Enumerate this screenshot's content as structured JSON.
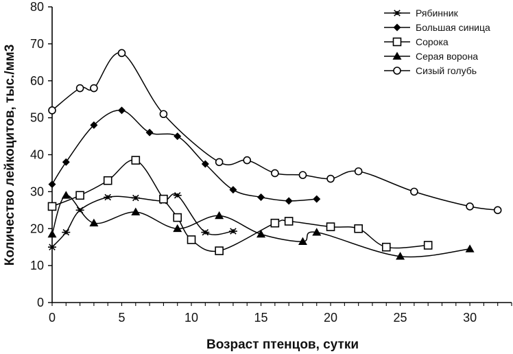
{
  "chart_data": {
    "type": "line",
    "xlabel": "Возраст птенцов, сутки",
    "ylabel": "Количество лейкоцитов, тыс./мм3",
    "xlim": [
      0,
      33
    ],
    "ylim": [
      0,
      80
    ],
    "xticks": [
      0,
      5,
      10,
      15,
      20,
      25,
      30
    ],
    "yticks": [
      0,
      10,
      20,
      30,
      40,
      50,
      60,
      70,
      80
    ],
    "grid": false,
    "smooth": true,
    "legend_position": "top-right",
    "series": [
      {
        "name": "Рябинник",
        "marker": "asterisk",
        "x": [
          0,
          1,
          2,
          4,
          6,
          8,
          9,
          11,
          13
        ],
        "y": [
          15,
          19,
          25,
          28.5,
          28.3,
          27.5,
          29,
          19,
          19.3
        ]
      },
      {
        "name": "Большая синица",
        "marker": "diamond",
        "x": [
          0,
          1,
          3,
          5,
          7,
          9,
          11,
          13,
          15,
          17,
          19
        ],
        "y": [
          32,
          38,
          48,
          52,
          46,
          45,
          37.5,
          30.5,
          28.5,
          27.5,
          28
        ]
      },
      {
        "name": "Сорока",
        "marker": "square-open",
        "x": [
          0,
          2,
          4,
          6,
          8,
          9,
          10,
          12,
          16,
          17,
          20,
          22,
          24,
          27
        ],
        "y": [
          26,
          29,
          33,
          38.5,
          28,
          23,
          17,
          14,
          21.5,
          22,
          20.5,
          20,
          15,
          15.5
        ]
      },
      {
        "name": "Серая ворона",
        "marker": "triangle",
        "x": [
          0,
          1,
          3,
          6,
          9,
          12,
          15,
          18,
          19,
          25,
          30
        ],
        "y": [
          18.5,
          29,
          21.5,
          24.5,
          20,
          23.5,
          18.5,
          16.5,
          19,
          12.5,
          14.5
        ]
      },
      {
        "name": "Сизый голубь",
        "marker": "circle-open",
        "x": [
          0,
          2,
          3,
          5,
          8,
          12,
          14,
          16,
          18,
          20,
          22,
          26,
          30,
          32
        ],
        "y": [
          52,
          58,
          58,
          67.5,
          51,
          38,
          38.5,
          35,
          34.5,
          33.5,
          35.5,
          30,
          26,
          25
        ]
      }
    ]
  }
}
